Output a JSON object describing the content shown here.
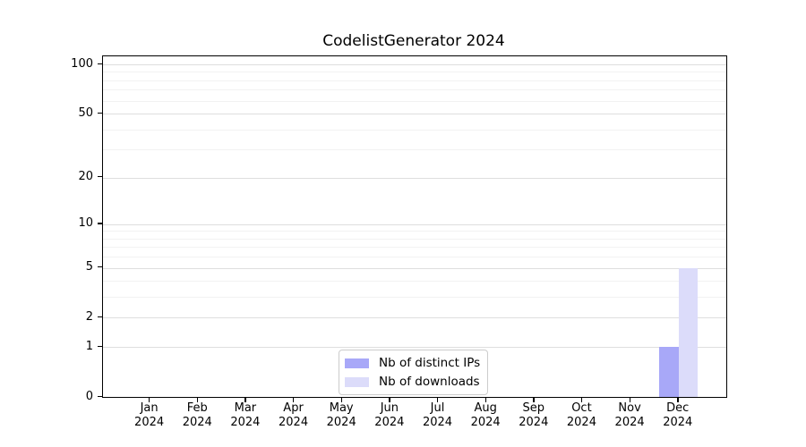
{
  "title": "CodelistGenerator 2024",
  "chart_data": {
    "type": "bar",
    "title": "CodelistGenerator 2024",
    "categories": [
      "Jan 2024",
      "Feb 2024",
      "Mar 2024",
      "Apr 2024",
      "May 2024",
      "Jun 2024",
      "Jul 2024",
      "Aug 2024",
      "Sep 2024",
      "Oct 2024",
      "Nov 2024",
      "Dec 2024"
    ],
    "series": [
      {
        "name": "Nb of distinct IPs",
        "color": "#a8a8f8",
        "values": [
          0,
          0,
          0,
          0,
          0,
          0,
          0,
          0,
          0,
          0,
          0,
          1
        ]
      },
      {
        "name": "Nb of downloads",
        "color": "#dcdcfa",
        "values": [
          0,
          0,
          0,
          0,
          0,
          0,
          0,
          0,
          0,
          0,
          0,
          5
        ]
      }
    ],
    "xlabel": "",
    "ylabel": "",
    "y_scale": "log1p",
    "ylim": [
      0,
      100
    ],
    "y_ticks": [
      0,
      1,
      2,
      5,
      10,
      20,
      50,
      100
    ],
    "y_minor_gridlines": [
      3,
      4,
      6,
      7,
      8,
      9,
      30,
      40,
      60,
      70,
      80,
      90
    ],
    "grid": true,
    "legend_position": "lower center",
    "colors": {
      "major_grid": "#dedede",
      "minor_grid": "#f2f2f2",
      "spine": "#000000",
      "text": "#000000",
      "background": "#ffffff"
    }
  }
}
